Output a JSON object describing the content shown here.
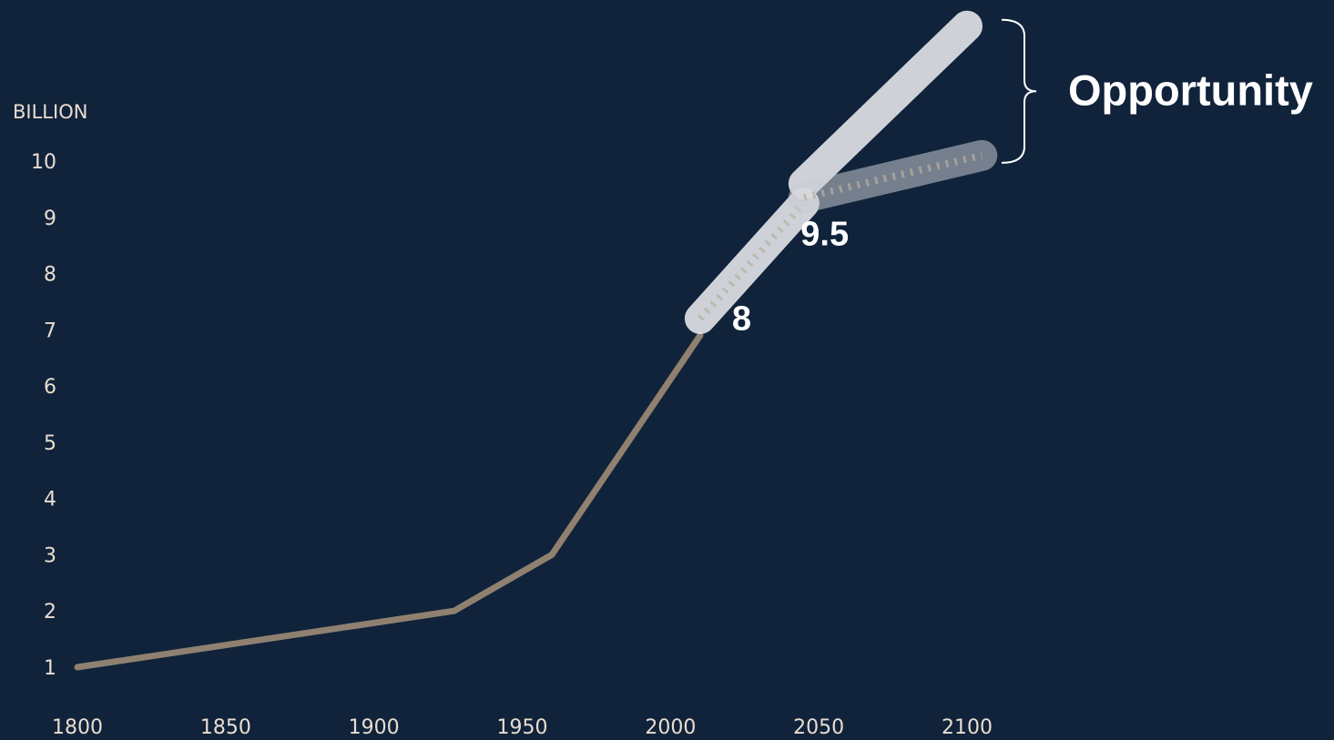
{
  "chart_data": {
    "type": "line",
    "ylabel": "BILLION",
    "x_ticks": [
      "1800",
      "1850",
      "1900",
      "1950",
      "2000",
      "2050",
      "2100"
    ],
    "y_ticks": [
      "1",
      "2",
      "3",
      "4",
      "5",
      "6",
      "7",
      "8",
      "9",
      "10"
    ],
    "xlim": [
      1800,
      2100
    ],
    "ylim": [
      1,
      10
    ],
    "series": [
      {
        "kind": "historical",
        "color": "#8f8070",
        "points": [
          [
            1800,
            1.0
          ],
          [
            1927,
            2.0
          ],
          [
            1960,
            3.0
          ],
          [
            2010,
            6.9
          ]
        ]
      },
      {
        "kind": "projection",
        "color": "#e8eaee",
        "points": [
          [
            2010,
            7.2
          ],
          [
            2045,
            9.25
          ]
        ]
      },
      {
        "kind": "projection-high",
        "color": "#e8eaee",
        "points": [
          [
            2045,
            9.6
          ],
          [
            2100,
            12.4
          ]
        ]
      },
      {
        "kind": "projection-low",
        "color": "#c8ccd3",
        "points": [
          [
            2045,
            9.35
          ],
          [
            2105,
            10.1
          ]
        ]
      }
    ],
    "annotations": [
      {
        "text": "8",
        "x": 2024,
        "y": 7.0
      },
      {
        "text": "9.5",
        "x": 2052,
        "y": 8.5
      }
    ],
    "bracket_label": "Opportunity"
  }
}
